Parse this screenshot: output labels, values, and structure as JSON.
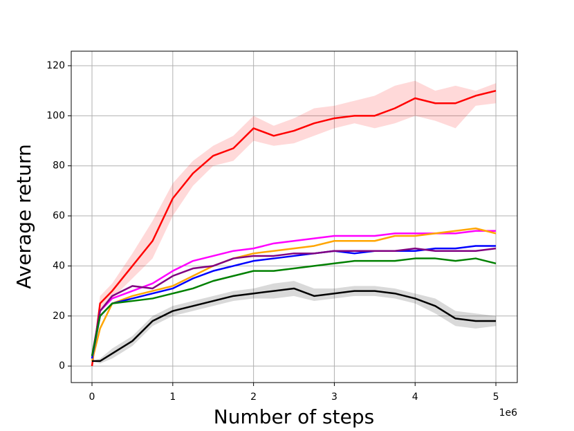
{
  "chart_data": {
    "type": "line",
    "xlabel": "Number of steps",
    "ylabel": "Average return",
    "x_offset_label": "1e6",
    "x": [
      0,
      0.1,
      0.25,
      0.5,
      0.75,
      1,
      1.25,
      1.5,
      1.75,
      2,
      2.25,
      2.5,
      2.75,
      3,
      3.25,
      3.5,
      3.75,
      4,
      4.25,
      4.5,
      4.75,
      5
    ],
    "series": [
      {
        "color": "#ff0000",
        "values": [
          0,
          25,
          30,
          40,
          50,
          67,
          77,
          84,
          87,
          95,
          92,
          94,
          97,
          99,
          100,
          100,
          103,
          107,
          105,
          105,
          108,
          110
        ],
        "lower": [
          0,
          22,
          27,
          35,
          43,
          60,
          72,
          80,
          82,
          90,
          88,
          89,
          92,
          95,
          97,
          95,
          97,
          100,
          98,
          95,
          104,
          105
        ],
        "upper": [
          0,
          28,
          33,
          45,
          58,
          73,
          82,
          88,
          92,
          100,
          96,
          99,
          103,
          104,
          106,
          108,
          112,
          114,
          110,
          112,
          110,
          113
        ]
      },
      {
        "color": "#ff00ff",
        "values": [
          3,
          22,
          27,
          30,
          33,
          38,
          42,
          44,
          46,
          47,
          49,
          50,
          51,
          52,
          52,
          52,
          53,
          53,
          53,
          53,
          54,
          54
        ]
      },
      {
        "color": "#ffa500",
        "values": [
          2,
          15,
          25,
          28,
          30,
          32,
          36,
          40,
          43,
          45,
          46,
          47,
          48,
          50,
          50,
          50,
          52,
          52,
          53,
          54,
          55,
          53
        ]
      },
      {
        "color": "#0000ff",
        "values": [
          3,
          20,
          25,
          27,
          29,
          31,
          35,
          38,
          40,
          42,
          43,
          44,
          45,
          46,
          45,
          46,
          46,
          46,
          47,
          47,
          48,
          48
        ]
      },
      {
        "color": "#800080",
        "values": [
          4,
          22,
          28,
          32,
          31,
          36,
          39,
          40,
          43,
          44,
          44,
          45,
          45,
          46,
          46,
          46,
          46,
          47,
          46,
          46,
          46,
          47
        ]
      },
      {
        "color": "#008000",
        "values": [
          4,
          20,
          25,
          26,
          27,
          29,
          31,
          34,
          36,
          38,
          38,
          39,
          40,
          41,
          42,
          42,
          42,
          43,
          43,
          42,
          43,
          41
        ]
      },
      {
        "color": "#000000",
        "values": [
          2,
          2,
          5,
          10,
          18,
          22,
          24,
          26,
          28,
          29,
          30,
          31,
          28,
          29,
          30,
          30,
          29,
          27,
          24,
          19,
          18,
          18
        ],
        "lower": [
          2,
          1,
          3,
          8,
          16,
          20,
          22,
          24,
          26,
          27,
          27,
          28,
          26,
          27,
          28,
          28,
          27,
          25,
          21,
          16,
          15,
          16
        ],
        "upper": [
          2,
          3,
          7,
          12,
          20,
          24,
          26,
          28,
          30,
          31,
          33,
          34,
          31,
          31,
          32,
          32,
          31,
          29,
          27,
          22,
          21,
          20
        ]
      }
    ],
    "xlim": [
      -0.257,
      5.265
    ],
    "ylim": [
      -6.6,
      125.8
    ],
    "xticks": [
      0,
      1,
      2,
      3,
      4,
      5
    ],
    "yticks": [
      0,
      20,
      40,
      60,
      80,
      100,
      120
    ],
    "grid": true
  }
}
